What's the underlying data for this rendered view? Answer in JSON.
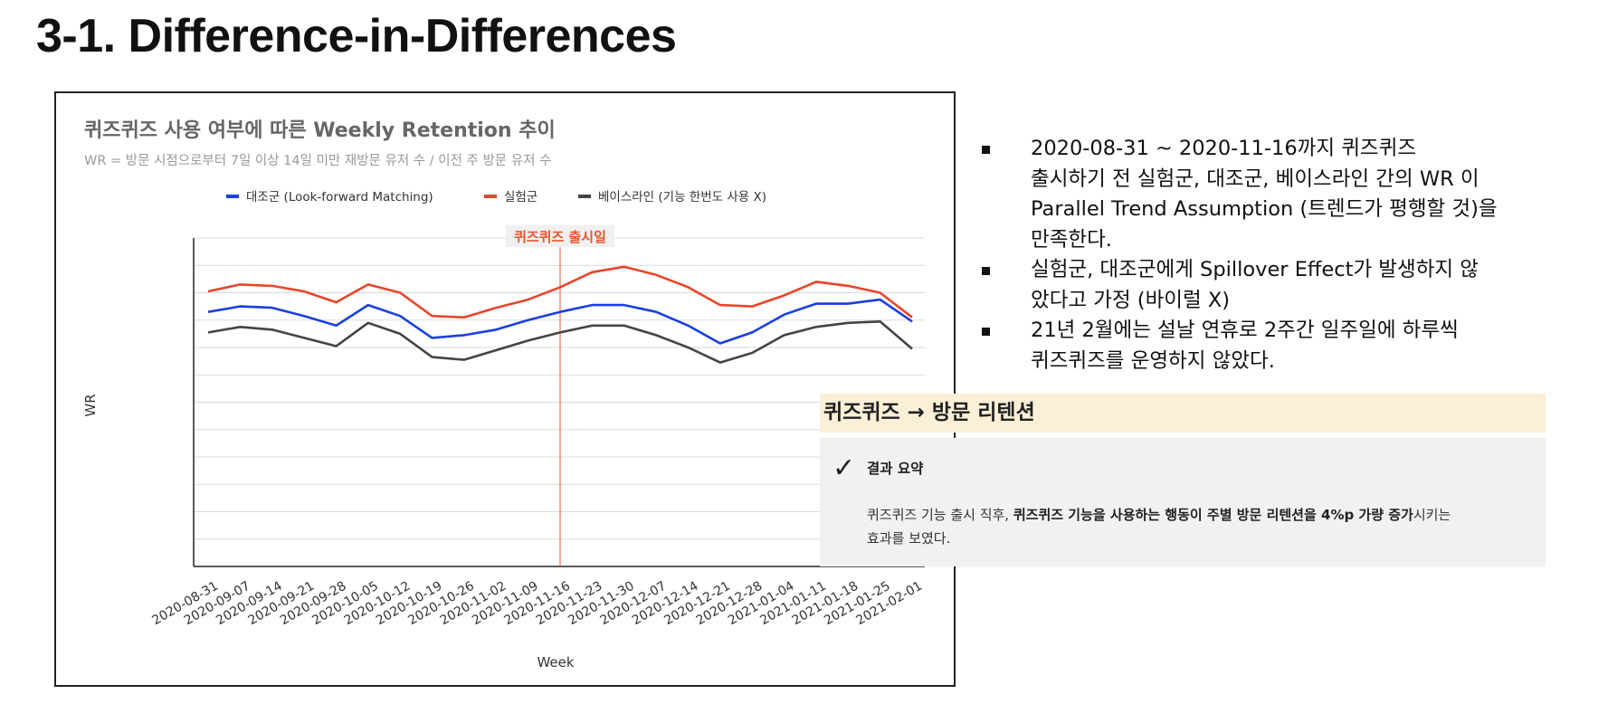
{
  "slide": {
    "title": "3-1. Difference-in-Differences"
  },
  "chart_data": {
    "type": "line",
    "title": "퀴즈퀴즈 사용 여부에 따른 Weekly Retention 추이",
    "subtitle": "WR = 방문 시점으로부터 7일 이상 14일 미만 재방문 유저 수 / 이전 주 방문 유저 수",
    "xlabel": "Week",
    "ylabel": "WR",
    "ylim": [
      0,
      12
    ],
    "grid": true,
    "legend_position": "top",
    "annotation": {
      "label": "퀴즈퀴즈 출시일",
      "x": "2020-11-16",
      "color": "#e8552f"
    },
    "categories": [
      "2020-08-31",
      "2020-09-07",
      "2020-09-14",
      "2020-09-21",
      "2020-09-28",
      "2020-10-05",
      "2020-10-12",
      "2020-10-19",
      "2020-10-26",
      "2020-11-02",
      "2020-11-09",
      "2020-11-16",
      "2020-11-23",
      "2020-11-30",
      "2020-12-07",
      "2020-12-14",
      "2020-12-21",
      "2020-12-28",
      "2021-01-04",
      "2021-01-11",
      "2021-01-18",
      "2021-01-25",
      "2021-02-01"
    ],
    "series": [
      {
        "name": "대조군 (Look-forward Matching)",
        "color": "#1a3fe0",
        "values": [
          9.3,
          9.5,
          9.45,
          9.15,
          8.8,
          9.55,
          9.15,
          8.35,
          8.45,
          8.65,
          9.0,
          9.3,
          9.55,
          9.55,
          9.3,
          8.8,
          8.15,
          8.55,
          9.2,
          9.6,
          9.6,
          9.75,
          8.95
        ]
      },
      {
        "name": "실험군",
        "color": "#e8452a",
        "values": [
          10.05,
          10.3,
          10.25,
          10.05,
          9.65,
          10.3,
          10.0,
          9.15,
          9.1,
          9.45,
          9.75,
          10.2,
          10.75,
          10.95,
          10.65,
          10.2,
          9.55,
          9.5,
          9.9,
          10.4,
          10.25,
          10.0,
          9.1
        ]
      },
      {
        "name": "베이스라인 (기능 한번도 사용 X)",
        "color": "#444444",
        "values": [
          8.55,
          8.75,
          8.65,
          8.35,
          8.05,
          8.9,
          8.5,
          7.65,
          7.55,
          7.9,
          8.25,
          8.55,
          8.8,
          8.8,
          8.45,
          8.0,
          7.45,
          7.8,
          8.45,
          8.75,
          8.9,
          8.95,
          7.95
        ]
      }
    ]
  },
  "bullets": [
    {
      "lines": [
        "2020-08-31 ~ 2020-11-16까지 퀴즈퀴즈",
        "출시하기 전 실험군, 대조군, 베이스라인 간의 WR 이",
        "Parallel Trend Assumption (트렌드가 평행할 것)을",
        "만족한다."
      ]
    },
    {
      "lines": [
        "실험군, 대조군에게 Spillover Effect가 발생하지 않",
        "았다고 가정 (바이럴 X)"
      ]
    },
    {
      "lines": [
        "21년 2월에는 설날 연휴로 2주간 일주일에 하루씩",
        "퀴즈퀴즈를 운영하지 않았다."
      ]
    }
  ],
  "callout": {
    "heading": "퀴즈퀴즈 → 방문 리텐션",
    "check_icon": "✓",
    "summary_title": "결과 요약",
    "text_part1": "퀴즈퀴즈 기능 출시 직후, ",
    "text_bold1": "퀴즈퀴즈 기능을 사용하는 행동이 주별 방문 리텐션을 4%p 가량 증가",
    "text_part2": "시키는",
    "text_line2": "효과를 보였다."
  }
}
